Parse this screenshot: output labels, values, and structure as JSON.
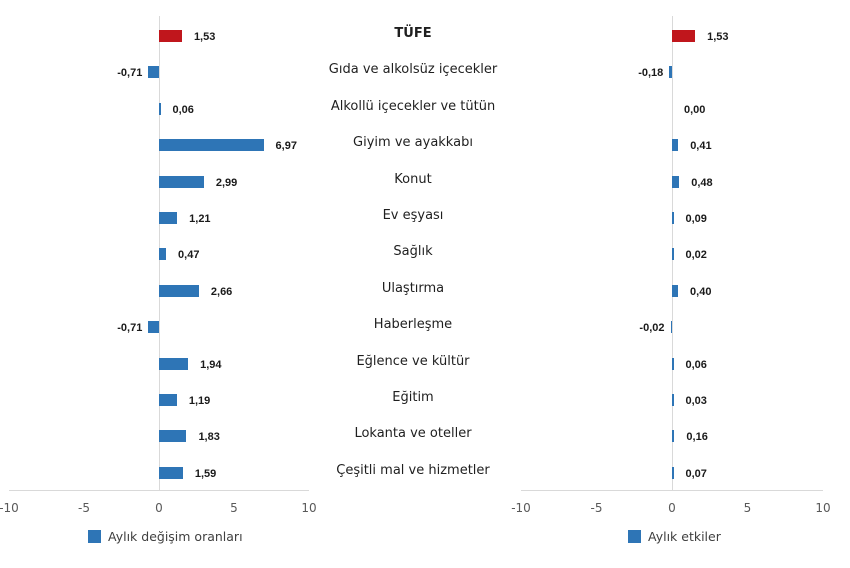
{
  "chart_data": [
    {
      "type": "bar",
      "orientation": "horizontal",
      "title": "",
      "categories": [
        "TÜFE",
        "Gıda ve alkolsüz içecekler",
        "Alkollü içecekler ve tütün",
        "Giyim ve ayakkabı",
        "Konut",
        "Ev eşyası",
        "Sağlık",
        "Ulaştırma",
        "Haberleşme",
        "Eğlence ve kültür",
        "Eğitim",
        "Lokanta ve oteller",
        "Çeşitli mal ve hizmetler"
      ],
      "series": [
        {
          "name": "Aylık değişim oranları",
          "values": [
            1.53,
            -0.71,
            0.06,
            6.97,
            2.99,
            1.21,
            0.47,
            2.66,
            -0.71,
            1.94,
            1.19,
            1.83,
            1.59
          ]
        }
      ],
      "value_labels": [
        "1,53",
        "-0,71",
        "0,06",
        "6,97",
        "2,99",
        "1,21",
        "0,47",
        "2,66",
        "-0,71",
        "1,94",
        "1,19",
        "1,83",
        "1,59"
      ],
      "xlim": [
        -10,
        10
      ],
      "xticks": [
        "-10",
        "-5",
        "0",
        "5",
        "10"
      ],
      "highlight_index": 0,
      "colors": {
        "bar": "#2e75b6",
        "highlight": "#c0161c"
      },
      "legend_position": "bottom",
      "grid": false
    },
    {
      "type": "bar",
      "orientation": "horizontal",
      "title": "",
      "categories": [
        "TÜFE",
        "Gıda ve alkolsüz içecekler",
        "Alkollü içecekler ve tütün",
        "Giyim ve ayakkabı",
        "Konut",
        "Ev eşyası",
        "Sağlık",
        "Ulaştırma",
        "Haberleşme",
        "Eğlence ve kültür",
        "Eğitim",
        "Lokanta ve oteller",
        "Çeşitli mal ve hizmetler"
      ],
      "series": [
        {
          "name": "Aylık etkiler",
          "values": [
            1.53,
            -0.18,
            0.0,
            0.41,
            0.48,
            0.09,
            0.02,
            0.4,
            -0.02,
            0.06,
            0.03,
            0.16,
            0.07
          ]
        }
      ],
      "value_labels": [
        "1,53",
        "-0,18",
        "0,00",
        "0,41",
        "0,48",
        "0,09",
        "0,02",
        "0,40",
        "-0,02",
        "0,06",
        "0,03",
        "0,16",
        "0,07"
      ],
      "xlim": [
        -10,
        10
      ],
      "xticks": [
        "-10",
        "-5",
        "0",
        "5",
        "10"
      ],
      "highlight_index": 0,
      "colors": {
        "bar": "#2e75b6",
        "highlight": "#c0161c"
      },
      "legend_position": "bottom",
      "grid": false
    }
  ],
  "categories": [
    "TÜFE",
    "Gıda ve alkolsüz içecekler",
    "Alkollü içecekler ve tütün",
    "Giyim ve ayakkabı",
    "Konut",
    "Ev eşyası",
    "Sağlık",
    "Ulaştırma",
    "Haberleşme",
    "Eğlence ve kültür",
    "Eğitim",
    "Lokanta ve oteller",
    "Çeşitli mal ve hizmetler"
  ],
  "left_legend": "Aylık değişim oranları",
  "right_legend": "Aylık etkiler"
}
